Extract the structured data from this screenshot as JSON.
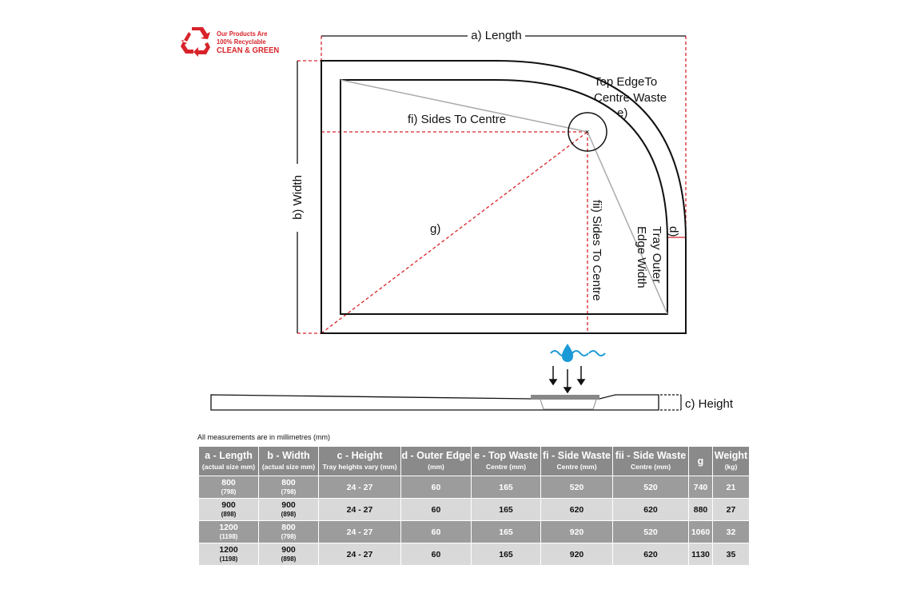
{
  "logo": {
    "line1": "Our Products Are",
    "line2": "100% Recyclable",
    "line3": "CLEAN & GREEN",
    "icon": "recycle-icon",
    "color": "#d8232a"
  },
  "labels": {
    "length": "a) Length",
    "width": "b) Width",
    "top_edge_1": "Top EdgeTo",
    "top_edge_2": "Centre Waste",
    "e": "e)",
    "fi": "fi) Sides To Centre",
    "fii": "fii) Sides To Centre",
    "g": "g)",
    "d": "d)",
    "outer_1": "Tray Outer",
    "outer_2": "Edge Width",
    "height": "c) Height"
  },
  "note": "All measurements are in millimetres (mm)",
  "table": {
    "headers": [
      {
        "main": "a - Length",
        "sub": "(actual size mm)"
      },
      {
        "main": "b - Width",
        "sub": "(actual size mm)"
      },
      {
        "main": "c - Height",
        "sub": "Tray heights vary (mm)"
      },
      {
        "main": "d - Outer Edge",
        "sub": "(mm)"
      },
      {
        "main": "e - Top Waste",
        "sub": "Centre (mm)"
      },
      {
        "main": "fi - Side Waste",
        "sub": "Centre (mm)"
      },
      {
        "main": "fii - Side Waste",
        "sub": "Centre (mm)"
      },
      {
        "main": "g",
        "sub": ""
      },
      {
        "main": "Weight",
        "sub": "(kg)"
      }
    ],
    "rows": [
      {
        "a": "800",
        "a_actual": "(798)",
        "b": "800",
        "b_actual": "(798)",
        "c": "24 - 27",
        "d": "60",
        "e": "165",
        "fi": "520",
        "fii": "520",
        "g": "740",
        "weight": "21"
      },
      {
        "a": "900",
        "a_actual": "(898)",
        "b": "900",
        "b_actual": "(898)",
        "c": "24 - 27",
        "d": "60",
        "e": "165",
        "fi": "620",
        "fii": "620",
        "g": "880",
        "weight": "27"
      },
      {
        "a": "1200",
        "a_actual": "(1198)",
        "b": "800",
        "b_actual": "(798)",
        "c": "24 - 27",
        "d": "60",
        "e": "165",
        "fi": "920",
        "fii": "520",
        "g": "1060",
        "weight": "32"
      },
      {
        "a": "1200",
        "a_actual": "(1198)",
        "b": "900",
        "b_actual": "(898)",
        "c": "24 - 27",
        "d": "60",
        "e": "165",
        "fi": "920",
        "fii": "620",
        "g": "1130",
        "weight": "35"
      }
    ]
  },
  "colors": {
    "dimension_red": "#d8232a",
    "header_gray": "#8a8a8a",
    "row_dark": "#9c9c9c",
    "row_light": "#d9d9d9",
    "water_blue": "#1a9ad6"
  }
}
